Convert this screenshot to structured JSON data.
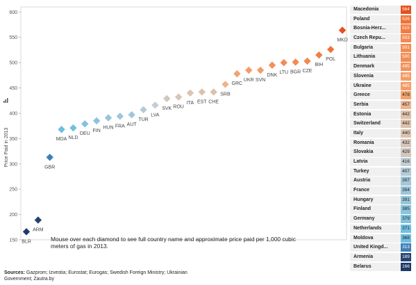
{
  "note": "Mouse over each diamond to see full country name and approximate price paid per 1,000 cubic meters of gas in 2013.",
  "sources": {
    "label": "Sources:",
    "text": " Gazprom; Izvestia; Eurostat; Eurogas; Swedish Foreign Ministry; Ukrainian Government; Zautra.by"
  },
  "chart_data": {
    "type": "scatter",
    "ylabel": "Price Paid in 2013",
    "ylim": [
      150,
      610
    ],
    "yticks": [
      150,
      200,
      250,
      300,
      350,
      400,
      450,
      500,
      550,
      600
    ],
    "points": [
      {
        "code": "BLR",
        "value": 166
      },
      {
        "code": "ARM",
        "value": 189
      },
      {
        "code": "GBR",
        "value": 313
      },
      {
        "code": "MDA",
        "value": 368
      },
      {
        "code": "NLD",
        "value": 371
      },
      {
        "code": "DEU",
        "value": 379
      },
      {
        "code": "FIN",
        "value": 385
      },
      {
        "code": "HUN",
        "value": 391
      },
      {
        "code": "FRA",
        "value": 394
      },
      {
        "code": "AUT",
        "value": 397
      },
      {
        "code": "TUR",
        "value": 407
      },
      {
        "code": "LVA",
        "value": 416
      },
      {
        "code": "SVK",
        "value": 429
      },
      {
        "code": "ROU",
        "value": 432
      },
      {
        "code": "ITA",
        "value": 440
      },
      {
        "code": "EST",
        "value": 442
      },
      {
        "code": "CHE",
        "value": 442
      },
      {
        "code": "SRB",
        "value": 457
      },
      {
        "code": "GRC",
        "value": 478
      },
      {
        "code": "UKR",
        "value": 485
      },
      {
        "code": "SVN",
        "value": 485
      },
      {
        "code": "DNK",
        "value": 495
      },
      {
        "code": "LTU",
        "value": 500
      },
      {
        "code": "BGR",
        "value": 501
      },
      {
        "code": "CZE",
        "value": 503
      },
      {
        "code": "BIH",
        "value": 515
      },
      {
        "code": "POL",
        "value": 526
      },
      {
        "code": "MKD",
        "value": 564
      }
    ],
    "legend": [
      {
        "name": "Macedonia",
        "value": 564
      },
      {
        "name": "Poland",
        "value": 526
      },
      {
        "name": "Bosnia-Herz...",
        "value": 515
      },
      {
        "name": "Czech Repu...",
        "value": 503
      },
      {
        "name": "Bulgaria",
        "value": 501
      },
      {
        "name": "Lithuania",
        "value": 500
      },
      {
        "name": "Denmark",
        "value": 495
      },
      {
        "name": "Slovenia",
        "value": 485
      },
      {
        "name": "Ukraine",
        "value": 485
      },
      {
        "name": "Greece",
        "value": 478
      },
      {
        "name": "Serbia",
        "value": 457
      },
      {
        "name": "Estonia",
        "value": 442
      },
      {
        "name": "Switzerland",
        "value": 442
      },
      {
        "name": "Italy",
        "value": 440
      },
      {
        "name": "Romania",
        "value": 432
      },
      {
        "name": "Slovakia",
        "value": 429
      },
      {
        "name": "Latvia",
        "value": 416
      },
      {
        "name": "Turkey",
        "value": 407
      },
      {
        "name": "Austria",
        "value": 397
      },
      {
        "name": "France",
        "value": 394
      },
      {
        "name": "Hungary",
        "value": 391
      },
      {
        "name": "Finland",
        "value": 385
      },
      {
        "name": "Germany",
        "value": 379
      },
      {
        "name": "Netherlands",
        "value": 371
      },
      {
        "name": "Moldova",
        "value": 368
      },
      {
        "name": "United Kingd...",
        "value": 313
      },
      {
        "name": "Armenia",
        "value": 189
      },
      {
        "name": "Belarus",
        "value": 166
      }
    ],
    "color_scale": {
      "low": "#1f3864",
      "mid_low": "#6fc0e0",
      "mid": "#d9d9d9",
      "mid_high": "#f7a973",
      "high": "#e8501a"
    },
    "legend_placement": "right",
    "grid": false
  }
}
